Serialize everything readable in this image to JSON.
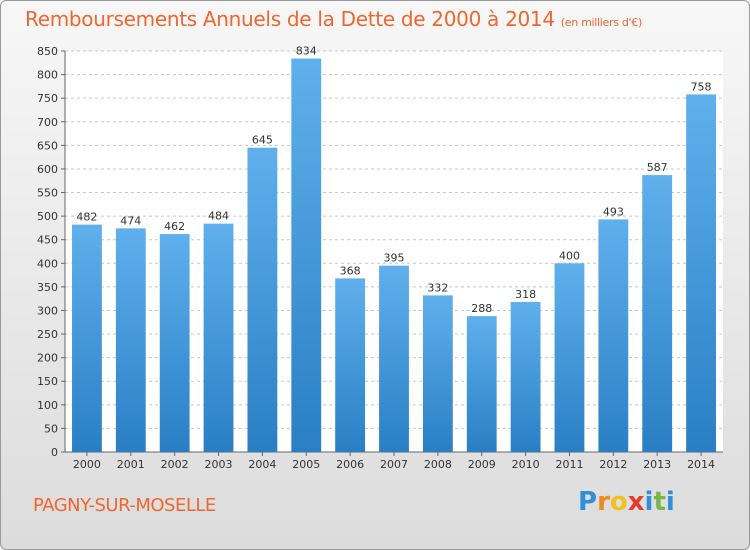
{
  "title": "Remboursements Annuels de la Dette de 2000 à 2014",
  "subtitle": "(en milliers d'€)",
  "commune": "PAGNY-SUR-MOSELLE",
  "logo": {
    "letters": [
      "P",
      "r",
      "o",
      "x",
      "i",
      "t",
      "i"
    ],
    "colors": [
      "#2f8fd8",
      "#f08a1c",
      "#f0c21c",
      "#e8382c",
      "#2f8fd8",
      "#7ab648",
      "#2f8fd8"
    ]
  },
  "colors": {
    "title": "#f0662f",
    "bar_top": "#5fb0ec",
    "bar_bottom": "#2a7fc4"
  },
  "chart_data": {
    "type": "bar",
    "categories": [
      "2000",
      "2001",
      "2002",
      "2003",
      "2004",
      "2005",
      "2006",
      "2007",
      "2008",
      "2009",
      "2010",
      "2011",
      "2012",
      "2013",
      "2014"
    ],
    "values": [
      482,
      474,
      462,
      484,
      645,
      834,
      368,
      395,
      332,
      288,
      318,
      400,
      493,
      587,
      758
    ],
    "ylim": [
      0,
      850
    ],
    "yticks": [
      0,
      50,
      100,
      150,
      200,
      250,
      300,
      350,
      400,
      450,
      500,
      550,
      600,
      650,
      700,
      750,
      800,
      850
    ],
    "grid": true,
    "xlabel": "",
    "ylabel": ""
  }
}
